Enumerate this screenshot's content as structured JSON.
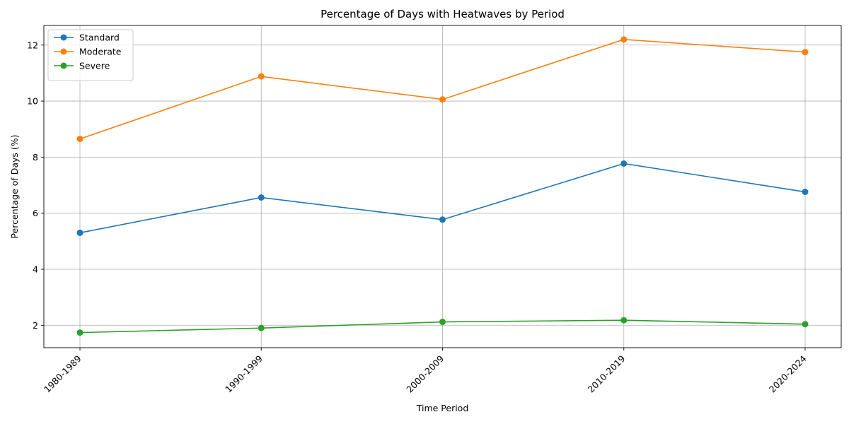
{
  "chart_data": {
    "type": "line",
    "title": "Percentage of Days with Heatwaves by Period",
    "xlabel": "Time Period",
    "ylabel": "Percentage of Days (%)",
    "categories": [
      "1980-1989",
      "1990-1999",
      "2000-2009",
      "2010-2019",
      "2020-2024"
    ],
    "ylim": [
      1.2,
      12.7
    ],
    "yticks": [
      2,
      4,
      6,
      8,
      10,
      12
    ],
    "grid": true,
    "legend_position": "top-left",
    "series": [
      {
        "name": "Standard",
        "color": "#1f77b4",
        "values": [
          5.3,
          6.56,
          5.77,
          7.77,
          6.76
        ]
      },
      {
        "name": "Moderate",
        "color": "#ff7f0e",
        "values": [
          8.65,
          10.88,
          10.06,
          12.2,
          11.75
        ]
      },
      {
        "name": "Severe",
        "color": "#2ca02c",
        "values": [
          1.74,
          1.9,
          2.12,
          2.18,
          2.04
        ]
      }
    ]
  }
}
